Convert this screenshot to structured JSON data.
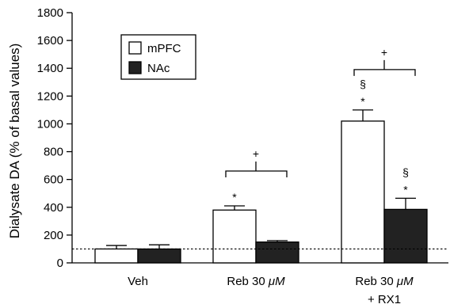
{
  "chart_data": {
    "type": "bar",
    "ylabel": "Dialysate DA (% of basal values)",
    "xlabel": "",
    "ylim": [
      0,
      1800
    ],
    "yticks": [
      0,
      200,
      400,
      600,
      800,
      1000,
      1200,
      1400,
      1600,
      1800
    ],
    "grid": false,
    "legend_position": "top-left",
    "baseline": 100,
    "categories": [
      {
        "line1": "Veh",
        "line2": "",
        "unit": ""
      },
      {
        "line1": "Reb 30 ",
        "line2": "",
        "unit": "μM"
      },
      {
        "line1": "Reb 30 ",
        "line2": "+ RX1",
        "unit": "μM"
      }
    ],
    "series": [
      {
        "name": "mPFC",
        "fill": "#ffffff",
        "values": [
          100,
          380,
          1020
        ],
        "errors": [
          25,
          30,
          80
        ],
        "annotations": [
          "",
          "*",
          "§\n*"
        ]
      },
      {
        "name": "NAc",
        "fill": "#222222",
        "values": [
          100,
          150,
          385
        ],
        "errors": [
          30,
          10,
          80
        ],
        "annotations": [
          "",
          "",
          "§\n*"
        ]
      }
    ],
    "brackets": [
      {
        "category": 1,
        "label": "+"
      },
      {
        "category": 2,
        "label": "+"
      }
    ]
  }
}
